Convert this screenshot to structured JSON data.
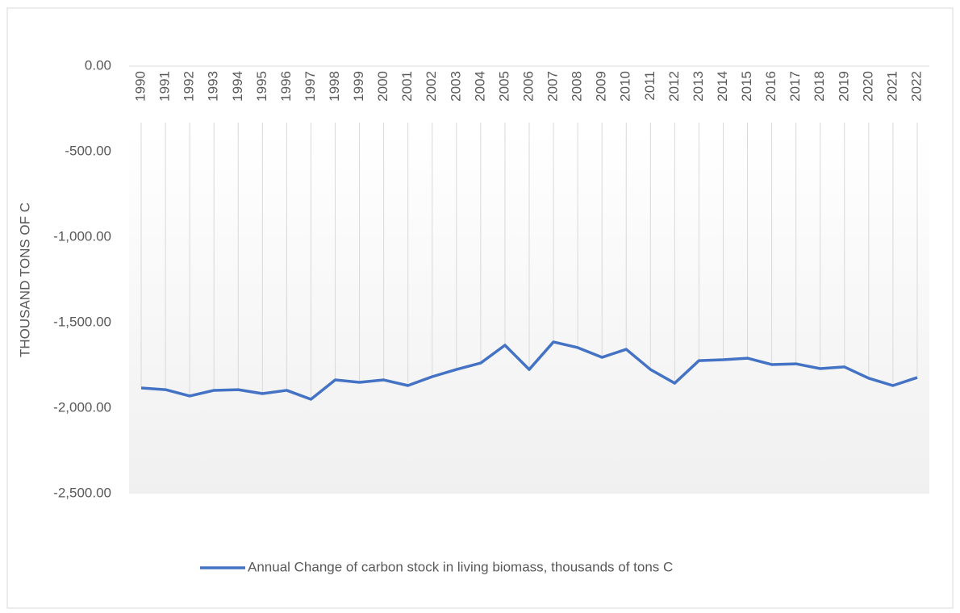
{
  "chart_data": {
    "type": "line",
    "y_label": "THOUSAND TONS OF C",
    "categories": [
      "1990",
      "1991",
      "1992",
      "1993",
      "1994",
      "1995",
      "1996",
      "1997",
      "1998",
      "1999",
      "2000",
      "2001",
      "2002",
      "2003",
      "2004",
      "2005",
      "2006",
      "2007",
      "2008",
      "2009",
      "2010",
      "2011",
      "2012",
      "2013",
      "2014",
      "2015",
      "2016",
      "2017",
      "2018",
      "2019",
      "2020",
      "2021",
      "2022"
    ],
    "series": [
      {
        "name": "Annual Change of carbon stock in living biomass, thousands of tons C",
        "color": "#4472c4",
        "values": [
          -1882,
          -1892,
          -1929,
          -1896,
          -1892,
          -1915,
          -1896,
          -1948,
          -1835,
          -1849,
          -1835,
          -1868,
          -1816,
          -1774,
          -1736,
          -1632,
          -1774,
          -1613,
          -1646,
          -1703,
          -1656,
          -1774,
          -1854,
          -1722,
          -1717,
          -1708,
          -1745,
          -1741,
          -1769,
          -1759,
          -1825,
          -1868,
          -1821
        ]
      }
    ],
    "ylim": [
      -2500,
      0
    ],
    "yticks": [
      {
        "value": 0,
        "label": "0.00"
      },
      {
        "value": -500,
        "label": "-500.00"
      },
      {
        "value": -1000,
        "label": "-1,000.00"
      },
      {
        "value": -1500,
        "label": "-1,500.00"
      },
      {
        "value": -2000,
        "label": "-2,000.00"
      },
      {
        "value": -2500,
        "label": "-2,500.00"
      }
    ],
    "legend": "bottom"
  }
}
